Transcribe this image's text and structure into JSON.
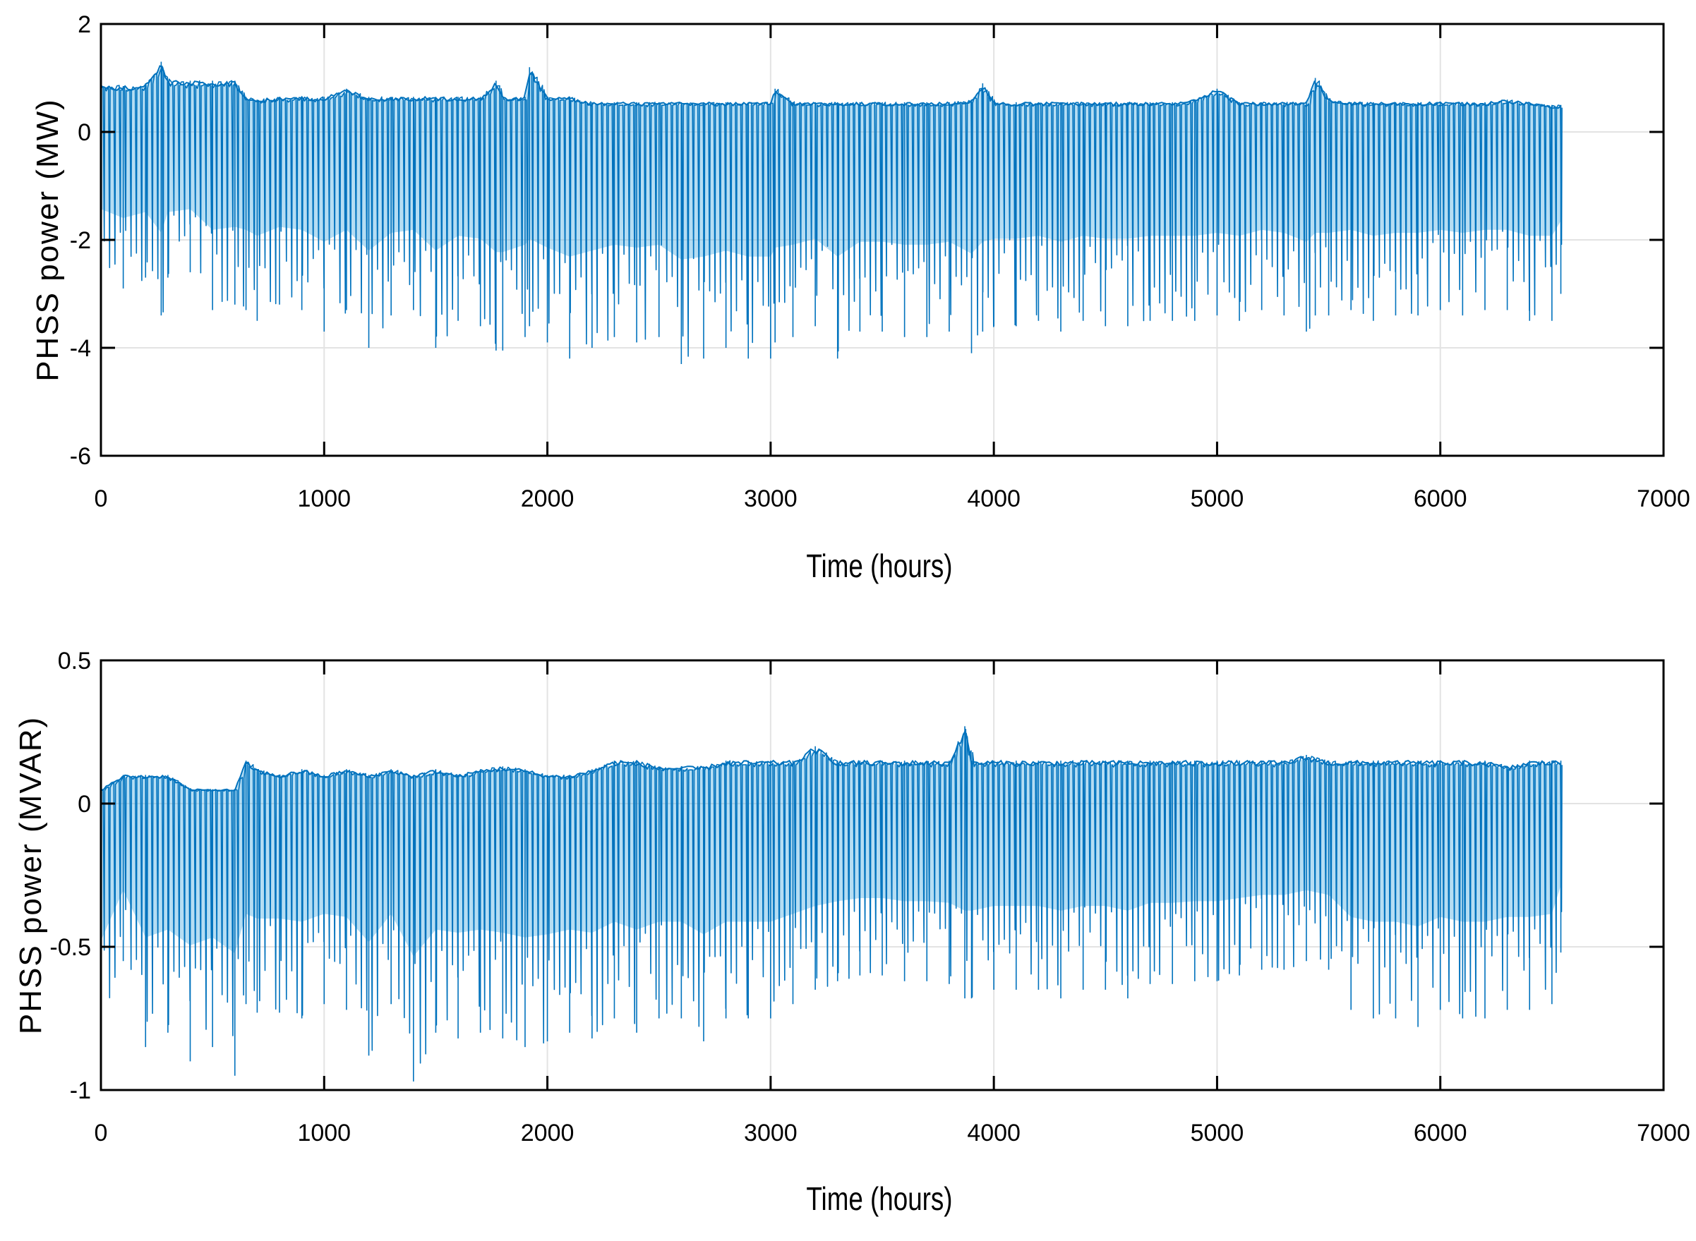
{
  "figure": {
    "background": "#ffffff",
    "line_color": "#0072BD",
    "fill_color": "#5AB4E5"
  },
  "chart_data": [
    {
      "type": "line",
      "title": "",
      "xlabel": "Time (hours)",
      "ylabel": "PHSS power (MW)",
      "xlim": [
        0,
        7000
      ],
      "ylim": [
        -6,
        2
      ],
      "xticks": [
        0,
        1000,
        2000,
        3000,
        4000,
        5000,
        6000,
        7000
      ],
      "yticks": [
        2,
        0,
        -2,
        -4,
        -6
      ],
      "xtick_labels": [
        "0",
        "1000",
        "2000",
        "3000",
        "4000",
        "5000",
        "6000",
        "7000"
      ],
      "ytick_labels": [
        "2",
        "0",
        "-2",
        "-4",
        "-6"
      ],
      "grid": true,
      "series": [
        {
          "x": [
            0,
            100,
            200,
            270,
            300,
            400,
            500,
            600,
            650,
            700,
            800,
            900,
            1000,
            1100,
            1200,
            1300,
            1400,
            1500,
            1600,
            1700,
            1770,
            1800,
            1900,
            1920,
            2000,
            2100,
            2200,
            2300,
            2400,
            2500,
            2600,
            2700,
            2800,
            2900,
            3000,
            3020,
            3100,
            3200,
            3300,
            3400,
            3500,
            3600,
            3700,
            3800,
            3900,
            3950,
            4000,
            4100,
            4200,
            4300,
            4400,
            4500,
            4600,
            4700,
            4800,
            4900,
            5000,
            5100,
            5200,
            5300,
            5400,
            5440,
            5500,
            5600,
            5700,
            5800,
            5900,
            6000,
            6100,
            6200,
            6300,
            6400,
            6500,
            6540
          ],
          "upper": [
            0.9,
            0.85,
            0.9,
            1.3,
            0.95,
            0.95,
            0.95,
            0.95,
            0.65,
            0.6,
            0.65,
            0.65,
            0.65,
            0.8,
            0.65,
            0.65,
            0.65,
            0.65,
            0.65,
            0.65,
            0.95,
            0.65,
            0.65,
            1.2,
            0.65,
            0.65,
            0.55,
            0.55,
            0.55,
            0.55,
            0.55,
            0.55,
            0.55,
            0.55,
            0.55,
            0.8,
            0.55,
            0.55,
            0.55,
            0.55,
            0.55,
            0.55,
            0.55,
            0.55,
            0.6,
            0.9,
            0.55,
            0.55,
            0.55,
            0.55,
            0.55,
            0.55,
            0.55,
            0.55,
            0.55,
            0.6,
            0.8,
            0.55,
            0.55,
            0.55,
            0.55,
            1.0,
            0.6,
            0.55,
            0.55,
            0.55,
            0.55,
            0.55,
            0.55,
            0.55,
            0.6,
            0.55,
            0.5,
            0.5
          ],
          "lower": [
            -2.6,
            -2.9,
            -2.7,
            -3.4,
            -2.7,
            -2.6,
            -3.3,
            -3.2,
            -3.3,
            -3.5,
            -3.2,
            -3.3,
            -3.7,
            -3.3,
            -4.0,
            -3.4,
            -3.3,
            -4.0,
            -3.5,
            -3.6,
            -4.05,
            -4.05,
            -3.8,
            -3.6,
            -3.9,
            -4.2,
            -4.0,
            -3.8,
            -3.9,
            -3.8,
            -4.3,
            -4.2,
            -4.0,
            -4.2,
            -4.2,
            -3.9,
            -3.8,
            -3.6,
            -4.2,
            -3.7,
            -3.7,
            -3.8,
            -3.8,
            -3.7,
            -4.1,
            -3.7,
            -3.6,
            -3.6,
            -3.5,
            -3.7,
            -3.5,
            -3.6,
            -3.6,
            -3.5,
            -3.5,
            -3.5,
            -3.4,
            -3.5,
            -3.3,
            -3.4,
            -3.7,
            -3.4,
            -3.4,
            -3.3,
            -3.5,
            -3.4,
            -3.4,
            -3.3,
            -3.4,
            -3.3,
            -3.3,
            -3.5,
            -3.5,
            -3.0
          ]
        }
      ]
    },
    {
      "type": "line",
      "title": "",
      "xlabel": "Time (hours)",
      "ylabel": "PHSS power (MVAR)",
      "xlim": [
        0,
        7000
      ],
      "ylim": [
        -1,
        0.5
      ],
      "xticks": [
        0,
        1000,
        2000,
        3000,
        4000,
        5000,
        6000,
        7000
      ],
      "yticks": [
        0.5,
        0,
        -0.5,
        -1
      ],
      "xtick_labels": [
        "0",
        "1000",
        "2000",
        "3000",
        "4000",
        "5000",
        "6000",
        "7000"
      ],
      "ytick_labels": [
        "0.5",
        "0",
        "-0.5",
        "-1"
      ],
      "grid": true,
      "series": [
        {
          "x": [
            0,
            100,
            200,
            300,
            400,
            500,
            600,
            650,
            700,
            800,
            900,
            1000,
            1100,
            1200,
            1300,
            1400,
            1500,
            1600,
            1700,
            1800,
            1900,
            2000,
            2100,
            2200,
            2300,
            2400,
            2500,
            2600,
            2700,
            2800,
            2900,
            3000,
            3100,
            3200,
            3300,
            3400,
            3500,
            3600,
            3700,
            3800,
            3870,
            3900,
            4000,
            4100,
            4200,
            4300,
            4400,
            4500,
            4600,
            4700,
            4800,
            4900,
            5000,
            5100,
            5200,
            5300,
            5400,
            5500,
            5600,
            5700,
            5800,
            5900,
            6000,
            6100,
            6200,
            6300,
            6400,
            6500,
            6540
          ],
          "upper": [
            0.05,
            0.1,
            0.1,
            0.1,
            0.05,
            0.05,
            0.05,
            0.15,
            0.12,
            0.1,
            0.12,
            0.1,
            0.12,
            0.1,
            0.12,
            0.1,
            0.12,
            0.1,
            0.12,
            0.13,
            0.12,
            0.1,
            0.1,
            0.12,
            0.15,
            0.15,
            0.13,
            0.13,
            0.13,
            0.15,
            0.15,
            0.15,
            0.15,
            0.2,
            0.15,
            0.15,
            0.15,
            0.15,
            0.15,
            0.15,
            0.27,
            0.15,
            0.15,
            0.15,
            0.15,
            0.15,
            0.15,
            0.15,
            0.15,
            0.15,
            0.15,
            0.15,
            0.15,
            0.15,
            0.15,
            0.15,
            0.17,
            0.15,
            0.15,
            0.15,
            0.15,
            0.15,
            0.15,
            0.15,
            0.15,
            0.13,
            0.15,
            0.15,
            0.15
          ],
          "lower": [
            -0.87,
            -0.55,
            -0.85,
            -0.8,
            -0.9,
            -0.85,
            -0.95,
            -0.7,
            -0.73,
            -0.73,
            -0.75,
            -0.7,
            -0.72,
            -0.88,
            -0.7,
            -0.97,
            -0.8,
            -0.82,
            -0.8,
            -0.82,
            -0.85,
            -0.83,
            -0.8,
            -0.82,
            -0.75,
            -0.8,
            -0.75,
            -0.75,
            -0.83,
            -0.75,
            -0.75,
            -0.75,
            -0.7,
            -0.65,
            -0.62,
            -0.6,
            -0.6,
            -0.62,
            -0.62,
            -0.63,
            -0.68,
            -0.68,
            -0.65,
            -0.65,
            -0.65,
            -0.68,
            -0.65,
            -0.65,
            -0.68,
            -0.63,
            -0.63,
            -0.62,
            -0.62,
            -0.6,
            -0.58,
            -0.58,
            -0.55,
            -0.58,
            -0.72,
            -0.75,
            -0.75,
            -0.78,
            -0.72,
            -0.75,
            -0.75,
            -0.72,
            -0.72,
            -0.7,
            -0.52
          ]
        }
      ]
    }
  ]
}
